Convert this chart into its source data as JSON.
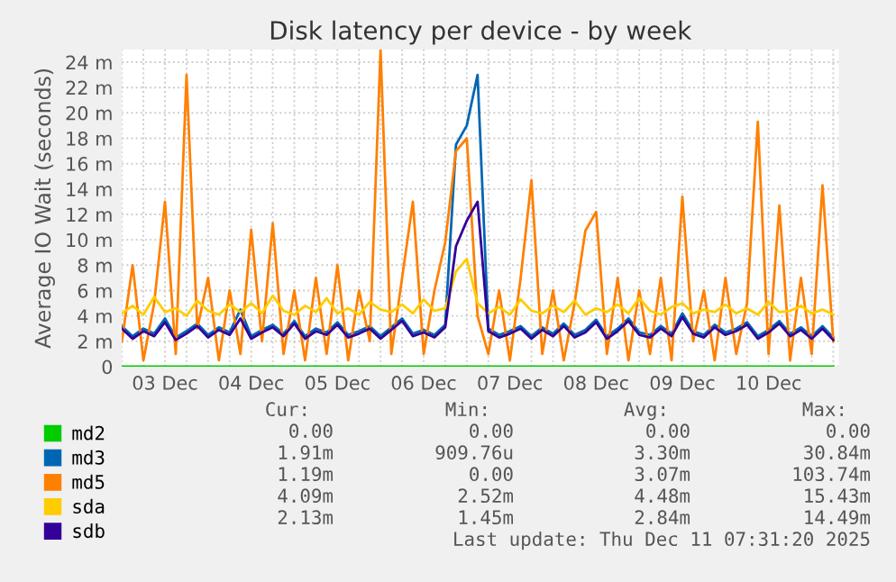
{
  "chart_data": {
    "type": "line",
    "title": "Disk latency per device - by week",
    "ylabel": "Average IO Wait (seconds)",
    "x": [
      "2025-12-03T00:00",
      "2025-12-03T03:00",
      "2025-12-03T06:00",
      "2025-12-03T09:00",
      "2025-12-03T12:00",
      "2025-12-03T15:00",
      "2025-12-03T18:00",
      "2025-12-03T21:00",
      "2025-12-04T00:00",
      "2025-12-04T03:00",
      "2025-12-04T06:00",
      "2025-12-04T09:00",
      "2025-12-04T12:00",
      "2025-12-04T15:00",
      "2025-12-04T18:00",
      "2025-12-04T21:00",
      "2025-12-05T00:00",
      "2025-12-05T03:00",
      "2025-12-05T06:00",
      "2025-12-05T09:00",
      "2025-12-05T12:00",
      "2025-12-05T15:00",
      "2025-12-05T18:00",
      "2025-12-05T21:00",
      "2025-12-06T00:00",
      "2025-12-06T03:00",
      "2025-12-06T06:00",
      "2025-12-06T09:00",
      "2025-12-06T12:00",
      "2025-12-06T15:00",
      "2025-12-06T18:00",
      "2025-12-06T21:00",
      "2025-12-07T00:00",
      "2025-12-07T03:00",
      "2025-12-07T06:00",
      "2025-12-07T09:00",
      "2025-12-07T12:00",
      "2025-12-07T15:00",
      "2025-12-07T18:00",
      "2025-12-07T21:00",
      "2025-12-08T00:00",
      "2025-12-08T03:00",
      "2025-12-08T06:00",
      "2025-12-08T09:00",
      "2025-12-08T12:00",
      "2025-12-08T15:00",
      "2025-12-08T18:00",
      "2025-12-08T21:00",
      "2025-12-09T00:00",
      "2025-12-09T03:00",
      "2025-12-09T06:00",
      "2025-12-09T09:00",
      "2025-12-09T12:00",
      "2025-12-09T15:00",
      "2025-12-09T18:00",
      "2025-12-09T21:00",
      "2025-12-10T00:00",
      "2025-12-10T03:00",
      "2025-12-10T06:00",
      "2025-12-10T09:00",
      "2025-12-10T12:00",
      "2025-12-10T15:00",
      "2025-12-10T18:00",
      "2025-12-10T21:00",
      "2025-12-11T00:00",
      "2025-12-11T03:00",
      "2025-12-11T06:00"
    ],
    "series": [
      {
        "name": "md2",
        "color": "#00cc00",
        "values": [
          0,
          0,
          0,
          0,
          0,
          0,
          0,
          0,
          0,
          0,
          0,
          0,
          0,
          0,
          0,
          0,
          0,
          0,
          0,
          0,
          0,
          0,
          0,
          0,
          0,
          0,
          0,
          0,
          0,
          0,
          0,
          0,
          0,
          0,
          0,
          0,
          0,
          0,
          0,
          0,
          0,
          0,
          0,
          0,
          0,
          0,
          0,
          0,
          0,
          0,
          0,
          0,
          0,
          0,
          0,
          0,
          0,
          0,
          0,
          0,
          0,
          0,
          0,
          0,
          0,
          0,
          0
        ]
      },
      {
        "name": "md3",
        "color": "#0066b3",
        "values": [
          3.2,
          2.4,
          3.0,
          2.6,
          3.8,
          2.3,
          2.8,
          3.4,
          2.5,
          3.1,
          2.7,
          4.5,
          2.4,
          2.9,
          3.3,
          2.6,
          3.6,
          2.4,
          3.0,
          2.7,
          3.5,
          2.5,
          2.8,
          3.2,
          2.4,
          3.1,
          3.8,
          2.6,
          2.9,
          2.5,
          3.3,
          17.5,
          19.0,
          23.0,
          3.0,
          2.5,
          2.8,
          3.2,
          2.4,
          3.1,
          2.6,
          3.4,
          2.5,
          2.9,
          3.7,
          2.4,
          3.0,
          3.8,
          2.7,
          2.5,
          3.2,
          2.6,
          4.2,
          2.8,
          2.5,
          3.3,
          2.7,
          3.0,
          3.5,
          2.4,
          2.9,
          3.6,
          2.6,
          3.1,
          2.4,
          3.2,
          2.3
        ]
      },
      {
        "name": "md5",
        "color": "#ff8000",
        "values": [
          2,
          8,
          0.5,
          5,
          13,
          1,
          23,
          3,
          7,
          0.5,
          6,
          1,
          10.8,
          2,
          11.3,
          1,
          6,
          0.5,
          7,
          1,
          8,
          0.5,
          6,
          2,
          25,
          1,
          7,
          13,
          1,
          6,
          9.8,
          17,
          18,
          4,
          1,
          6,
          0.5,
          7,
          14.7,
          1,
          6,
          0.5,
          5,
          10.7,
          12.2,
          1,
          7,
          0.5,
          6,
          1,
          7,
          0.5,
          13.4,
          2,
          6,
          0.5,
          7,
          1,
          5,
          19.3,
          1,
          12.7,
          0.5,
          7,
          1,
          14.3,
          2
        ]
      },
      {
        "name": "sda",
        "color": "#ffcc00",
        "values": [
          4.2,
          4.8,
          4.1,
          5.5,
          4.3,
          4.6,
          4.0,
          5.2,
          4.4,
          4.1,
          4.9,
          4.3,
          5.0,
          4.2,
          5.6,
          4.4,
          4.1,
          4.8,
          4.3,
          5.4,
          4.2,
          4.6,
          4.1,
          5.1,
          4.5,
          4.3,
          4.9,
          4.2,
          5.3,
          4.4,
          4.6,
          7.5,
          8.5,
          5.0,
          4.2,
          4.7,
          4.1,
          5.3,
          4.4,
          4.2,
          4.8,
          4.3,
          5.2,
          4.1,
          4.6,
          4.3,
          4.9,
          4.2,
          5.4,
          4.4,
          4.1,
          4.7,
          5.0,
          4.2,
          4.5,
          4.3,
          4.9,
          4.2,
          4.6,
          4.1,
          5.1,
          4.3,
          4.4,
          4.8,
          4.2,
          4.5,
          4.1
        ]
      },
      {
        "name": "sdb",
        "color": "#330099",
        "values": [
          3.0,
          2.2,
          2.8,
          2.4,
          3.5,
          2.1,
          2.6,
          3.2,
          2.3,
          2.9,
          2.5,
          3.8,
          2.2,
          2.7,
          3.1,
          2.4,
          3.4,
          2.2,
          2.8,
          2.5,
          3.3,
          2.3,
          2.6,
          3.0,
          2.2,
          2.9,
          3.6,
          2.4,
          2.7,
          2.3,
          3.1,
          9.5,
          11.5,
          13.0,
          2.8,
          2.3,
          2.6,
          3.0,
          2.2,
          2.9,
          2.4,
          3.2,
          2.3,
          2.7,
          3.5,
          2.2,
          2.8,
          3.6,
          2.5,
          2.3,
          3.0,
          2.4,
          3.9,
          2.6,
          2.3,
          3.1,
          2.5,
          2.8,
          3.3,
          2.2,
          2.7,
          3.4,
          2.4,
          2.9,
          2.2,
          3.0,
          2.1
        ]
      }
    ],
    "xlim": [
      "2025-12-03T00:00",
      "2025-12-11T07:30"
    ],
    "xticks": [
      {
        "value": "2025-12-03T12:00",
        "label": "03 Dec"
      },
      {
        "value": "2025-12-04T12:00",
        "label": "04 Dec"
      },
      {
        "value": "2025-12-05T12:00",
        "label": "05 Dec"
      },
      {
        "value": "2025-12-06T12:00",
        "label": "06 Dec"
      },
      {
        "value": "2025-12-07T12:00",
        "label": "07 Dec"
      },
      {
        "value": "2025-12-08T12:00",
        "label": "08 Dec"
      },
      {
        "value": "2025-12-09T12:00",
        "label": "09 Dec"
      },
      {
        "value": "2025-12-10T12:00",
        "label": "10 Dec"
      }
    ],
    "ylim": [
      0,
      25
    ],
    "yticks": [
      0,
      {
        "value": 2,
        "label": "2 m"
      },
      {
        "value": 4,
        "label": "4 m"
      },
      {
        "value": 6,
        "label": "6 m"
      },
      {
        "value": 8,
        "label": "8 m"
      },
      {
        "value": 10,
        "label": "10 m"
      },
      {
        "value": 12,
        "label": "12 m"
      },
      {
        "value": 14,
        "label": "14 m"
      },
      {
        "value": 16,
        "label": "16 m"
      },
      {
        "value": 18,
        "label": "18 m"
      },
      {
        "value": 20,
        "label": "20 m"
      },
      {
        "value": 22,
        "label": "22 m"
      },
      {
        "value": 24,
        "label": "24 m"
      }
    ],
    "grid": true,
    "legend": "bottom left",
    "marker": "none",
    "line_style": "solid",
    "annotations": [
      "Cur:",
      "Min:",
      "Avg:",
      "Max:",
      "0.00",
      "0.00",
      "0.00",
      "0.00",
      "1.91m",
      "909.76u",
      "3.30m",
      "30.84m",
      "1.19m",
      "0.00",
      "3.07m",
      "103.74m",
      "4.09m",
      "2.52m",
      "4.48m",
      "15.43m",
      "2.13m",
      "1.45m",
      "2.84m",
      "14.49m",
      "Last update: Thu Dec 11 07:31:20 2025"
    ]
  }
}
